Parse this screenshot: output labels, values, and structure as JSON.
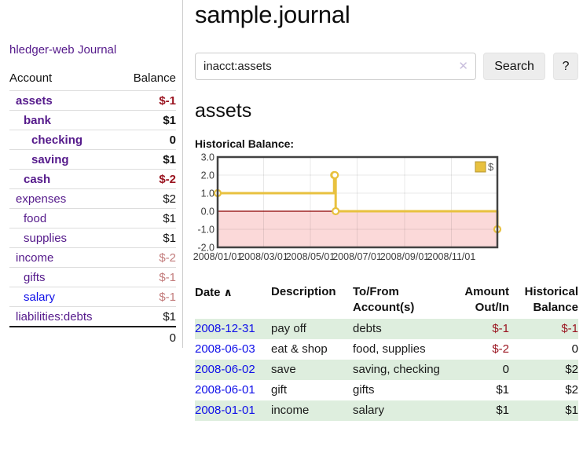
{
  "app": {
    "title": "hledger-web",
    "nav_journal": "Journal"
  },
  "colors": {
    "link_purple": "#551a8b",
    "link_blue": "#0f0fe8",
    "negative_strong": "#9a1420",
    "negative_muted": "#c27b7b",
    "row_green": "#deeede",
    "chart_line_gold": "#e8c13f",
    "chart_negative_fill": "#fbd9d9",
    "chart_zero_line": "#8b0000",
    "button_bg": "#ededed"
  },
  "sidebar_table": {
    "headers": {
      "account": "Account",
      "balance": "Balance"
    },
    "rows": [
      {
        "account": "assets",
        "indent": 1,
        "bold": true,
        "blue": false,
        "balance": "$-1",
        "balance_style": "neg-strong"
      },
      {
        "account": "bank",
        "indent": 2,
        "bold": true,
        "blue": false,
        "balance": "$1",
        "balance_style": "normal"
      },
      {
        "account": "checking",
        "indent": 3,
        "bold": true,
        "blue": false,
        "balance": "0",
        "balance_style": "normal"
      },
      {
        "account": "saving",
        "indent": 3,
        "bold": true,
        "blue": false,
        "balance": "$1",
        "balance_style": "normal"
      },
      {
        "account": "cash",
        "indent": 2,
        "bold": true,
        "blue": false,
        "balance": "$-2",
        "balance_style": "neg-strong"
      },
      {
        "account": "expenses",
        "indent": 1,
        "bold": false,
        "blue": false,
        "balance": "$2",
        "balance_style": "plain"
      },
      {
        "account": "food",
        "indent": 2,
        "bold": false,
        "blue": false,
        "balance": "$1",
        "balance_style": "plain"
      },
      {
        "account": "supplies",
        "indent": 2,
        "bold": false,
        "blue": false,
        "balance": "$1",
        "balance_style": "plain"
      },
      {
        "account": "income",
        "indent": 1,
        "bold": false,
        "blue": false,
        "balance": "$-2",
        "balance_style": "neg-muted"
      },
      {
        "account": "gifts",
        "indent": 2,
        "bold": false,
        "blue": false,
        "balance": "$-1",
        "balance_style": "neg-muted"
      },
      {
        "account": "salary",
        "indent": 2,
        "bold": false,
        "blue": true,
        "balance": "$-1",
        "balance_style": "neg-muted"
      },
      {
        "account": "liabilities:debts",
        "indent": 1,
        "bold": false,
        "blue": false,
        "balance": "$1",
        "balance_style": "plain"
      }
    ],
    "total": "0"
  },
  "main": {
    "title": "sample.journal",
    "search": {
      "value": "inacct:assets",
      "clear_icon": "✕",
      "button": "Search",
      "help_button": "?"
    },
    "account_heading": "assets",
    "chart_label": "Historical Balance:"
  },
  "chart_data": {
    "type": "line",
    "steps": true,
    "title": "Historical Balance",
    "legend": "$",
    "legend_position": "top-right",
    "grid": true,
    "xlim_days": [
      0,
      365
    ],
    "ylim": [
      -2,
      3
    ],
    "series": [
      {
        "name": "$",
        "color": "#e8c13f",
        "points": [
          {
            "date": "2008-01-01",
            "day": 0,
            "value": 1
          },
          {
            "date": "2008-06-01",
            "day": 152,
            "value": 2
          },
          {
            "date": "2008-06-02",
            "day": 153,
            "value": 2
          },
          {
            "date": "2008-06-03",
            "day": 154,
            "value": 0
          },
          {
            "date": "2008-12-31",
            "day": 365,
            "value": -1
          }
        ]
      }
    ],
    "x_ticks": [
      {
        "day": 0,
        "label": "2008/01/01"
      },
      {
        "day": 60,
        "label": "2008/03/01"
      },
      {
        "day": 121,
        "label": "2008/05/01"
      },
      {
        "day": 182,
        "label": "2008/07/01"
      },
      {
        "day": 244,
        "label": "2008/09/01"
      },
      {
        "day": 305,
        "label": "2008/11/01"
      }
    ],
    "y_ticks": [
      {
        "y": 3,
        "label": "3.0"
      },
      {
        "y": 2,
        "label": "2.0"
      },
      {
        "y": 1,
        "label": "1.0"
      },
      {
        "y": 0,
        "label": "0.0"
      },
      {
        "y": -1,
        "label": "-1.0"
      },
      {
        "y": -2,
        "label": "-2.0"
      }
    ],
    "negative_fill": "#fbd9d9",
    "zero_line_color": "#8b0000"
  },
  "register": {
    "headers": {
      "date": "Date",
      "sort_icon": "∧",
      "description": "Description",
      "account": "To/From Account(s)",
      "amount": "Amount Out/In",
      "balance": "Historical Balance"
    },
    "rows": [
      {
        "date": "2008-12-31",
        "description": "pay off",
        "account": "debts",
        "amount": "$-1",
        "amount_neg": true,
        "balance": "$-1",
        "balance_neg": true
      },
      {
        "date": "2008-06-03",
        "description": "eat & shop",
        "account": "food, supplies",
        "amount": "$-2",
        "amount_neg": true,
        "balance": "0",
        "balance_neg": false
      },
      {
        "date": "2008-06-02",
        "description": "save",
        "account": "saving, checking",
        "amount": "0",
        "amount_neg": false,
        "balance": "$2",
        "balance_neg": false
      },
      {
        "date": "2008-06-01",
        "description": "gift",
        "account": "gifts",
        "amount": "$1",
        "amount_neg": false,
        "balance": "$2",
        "balance_neg": false
      },
      {
        "date": "2008-01-01",
        "description": "income",
        "account": "salary",
        "amount": "$1",
        "amount_neg": false,
        "balance": "$1",
        "balance_neg": false
      }
    ]
  }
}
